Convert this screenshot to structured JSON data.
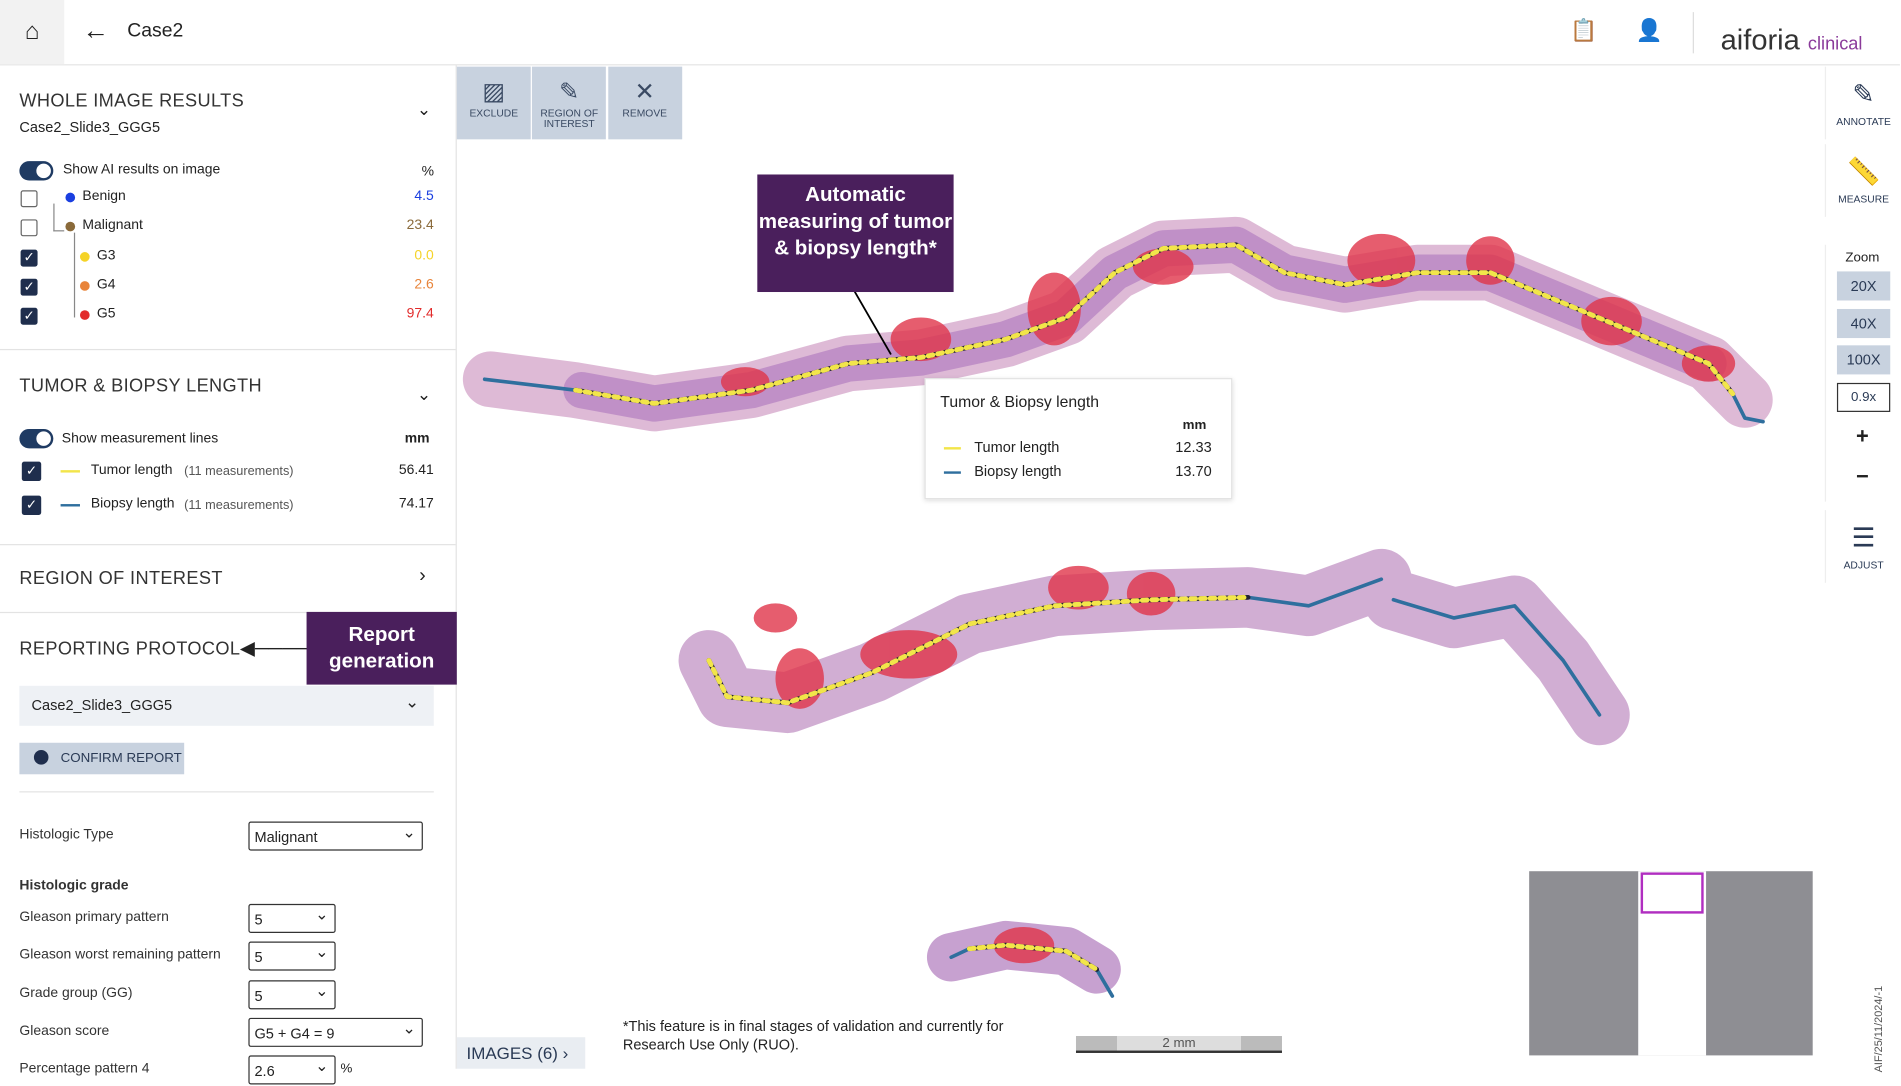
{
  "header": {
    "title": "Case2",
    "brand": "aiforia",
    "brand_suffix": "clinical"
  },
  "toolbar": [
    "EXCLUDE",
    "REGION OF INTEREST",
    "REMOVE"
  ],
  "right_tools": {
    "annotate": "ANNOTATE",
    "measure": "MEASURE",
    "zoom_title": "Zoom",
    "zoom_levels": [
      "20X",
      "40X",
      "100X"
    ],
    "zoom_current": "0.9x",
    "plus": "+",
    "minus": "−",
    "adjust": "ADJUST"
  },
  "whole_image_results": {
    "title": "WHOLE IMAGE RESULTS",
    "slide": "Case2_Slide3_GGG5",
    "toggle_label": "Show AI results on image",
    "unit": "%",
    "classes": [
      {
        "name": "Benign",
        "value": "4.5",
        "color": "#1a3fe0"
      },
      {
        "name": "Malignant",
        "value": "23.4",
        "color": "#8a6a3a"
      },
      {
        "name": "G3",
        "value": "0.0",
        "color": "#f5d327"
      },
      {
        "name": "G4",
        "value": "2.6",
        "color": "#e8843a"
      },
      {
        "name": "G5",
        "value": "97.4",
        "color": "#e22b2b"
      }
    ]
  },
  "tumor_biopsy": {
    "title": "TUMOR & BIOPSY LENGTH",
    "toggle_label": "Show measurement lines",
    "unit": "mm",
    "rows": [
      {
        "name": "Tumor length",
        "count": "(11 measurements)",
        "value": "56.41",
        "color": "#f2e54a"
      },
      {
        "name": "Biopsy length",
        "count": "(11 measurements)",
        "value": "74.17",
        "color": "#2f6f9e"
      }
    ]
  },
  "region_of_interest": {
    "title": "REGION OF INTEREST"
  },
  "reporting_protocol": {
    "title": "REPORTING PROTOCOL",
    "selected": "Case2_Slide3_GGG5",
    "confirm": "CONFIRM REPORT",
    "fields": [
      {
        "label": "Histologic Type",
        "value": "Malignant"
      }
    ],
    "subheading": "Histologic grade",
    "grade_fields": [
      {
        "label": "Gleason primary pattern",
        "value": "5"
      },
      {
        "label": "Gleason worst remaining pattern",
        "value": "5"
      },
      {
        "label": "Grade group (GG)",
        "value": "5"
      },
      {
        "label": "Gleason score",
        "value": "G5 + G4 = 9"
      },
      {
        "label": "Percentage pattern 4",
        "value": "2.6",
        "unit": "%"
      }
    ]
  },
  "tooltip": {
    "title": "Tumor & Biopsy length",
    "unit": "mm",
    "rows": [
      {
        "name": "Tumor length",
        "value": "12.33"
      },
      {
        "name": "Biopsy length",
        "value": "13.70"
      }
    ]
  },
  "callouts": {
    "measuring": "Automatic measuring of tumor & biopsy length*",
    "report": "Report generation"
  },
  "footnote": "*This feature is in final stages of validation and currently for Research Use Only (RUO).",
  "scale_bar": "2 mm",
  "images_button": "IMAGES (6)",
  "side_code": "AIF/25/11/2024/-1"
}
